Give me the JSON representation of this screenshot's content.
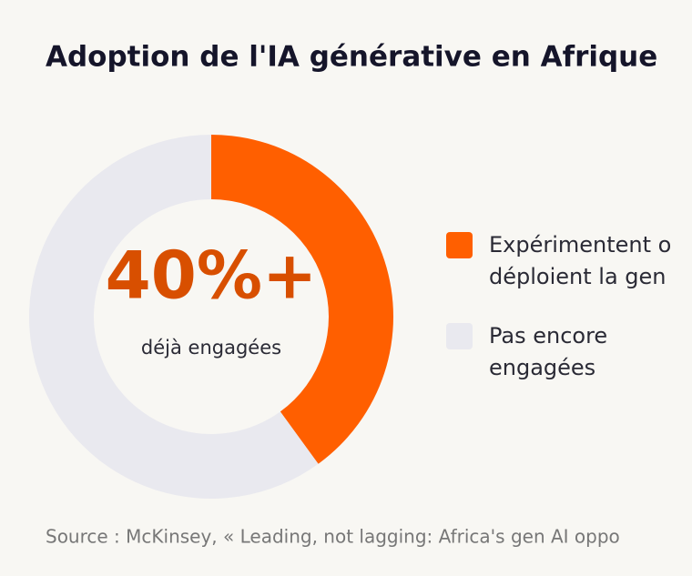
{
  "chart_data": {
    "type": "donut",
    "title": "Adoption de l'IA générative en Afrique",
    "labels": [
      [
        "Expérimentent o",
        "déploient la gen"
      ],
      [
        "Pas encore",
        "engagées"
      ]
    ],
    "values": [
      40,
      60
    ],
    "colors": [
      "#ff5f00",
      "#e9e9ef"
    ],
    "center_label": "40%+",
    "center_sublabel": "déjà engagées",
    "source": "Source : McKinsey, « Leading, not lagging: Africa's gen AI oppo"
  }
}
